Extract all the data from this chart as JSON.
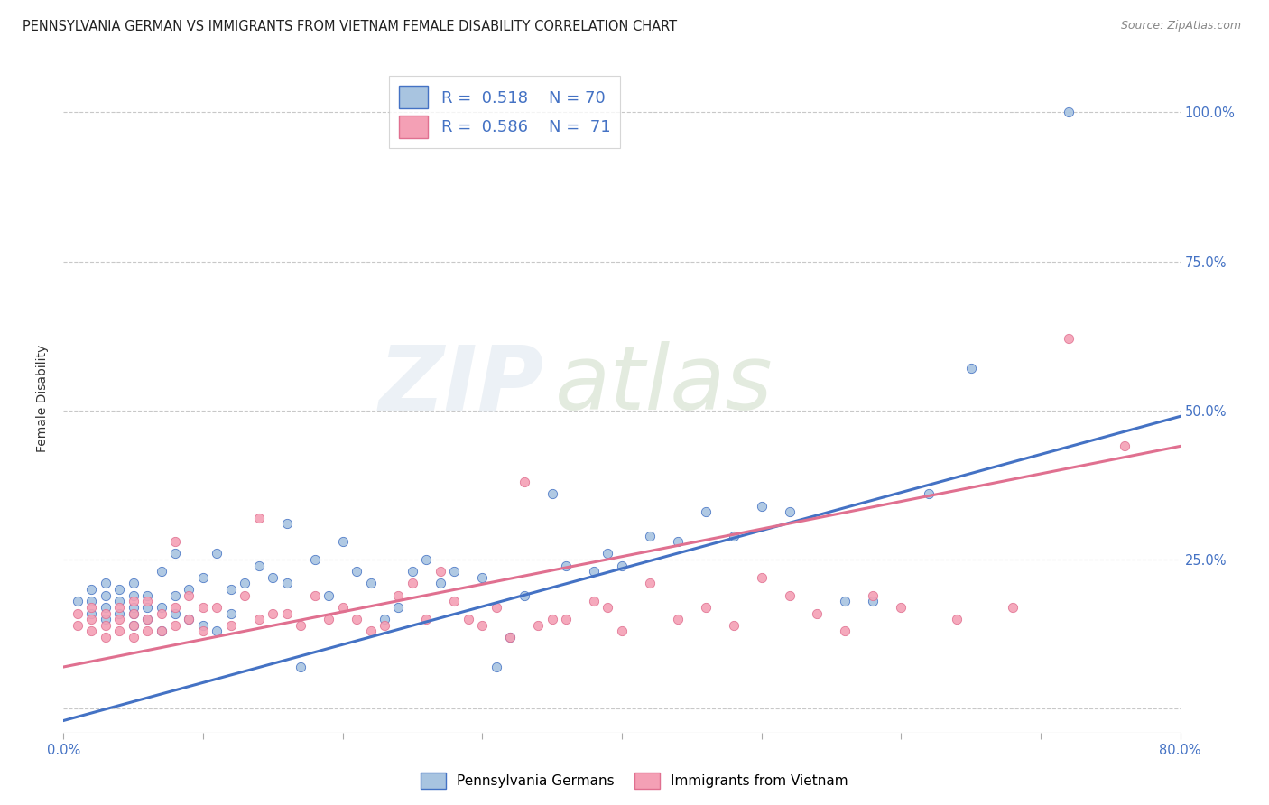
{
  "title": "PENNSYLVANIA GERMAN VS IMMIGRANTS FROM VIETNAM FEMALE DISABILITY CORRELATION CHART",
  "source": "Source: ZipAtlas.com",
  "ylabel": "Female Disability",
  "xlim": [
    0.0,
    0.8
  ],
  "ylim": [
    -0.04,
    1.08
  ],
  "yticks": [
    0.0,
    0.25,
    0.5,
    0.75,
    1.0
  ],
  "ytick_labels": [
    "",
    "25.0%",
    "50.0%",
    "75.0%",
    "100.0%"
  ],
  "xticks": [
    0.0,
    0.1,
    0.2,
    0.3,
    0.4,
    0.5,
    0.6,
    0.7,
    0.8
  ],
  "xtick_labels": [
    "0.0%",
    "",
    "",
    "",
    "",
    "",
    "",
    "",
    "80.0%"
  ],
  "blue_R": 0.518,
  "blue_N": 70,
  "pink_R": 0.586,
  "pink_N": 71,
  "blue_color": "#a8c4e0",
  "pink_color": "#f4a0b5",
  "line_blue": "#4472c4",
  "line_pink": "#e07090",
  "blue_scatter_x": [
    0.01,
    0.02,
    0.02,
    0.02,
    0.03,
    0.03,
    0.03,
    0.03,
    0.04,
    0.04,
    0.04,
    0.05,
    0.05,
    0.05,
    0.05,
    0.05,
    0.06,
    0.06,
    0.06,
    0.07,
    0.07,
    0.07,
    0.08,
    0.08,
    0.08,
    0.09,
    0.09,
    0.1,
    0.1,
    0.11,
    0.11,
    0.12,
    0.12,
    0.13,
    0.14,
    0.15,
    0.16,
    0.16,
    0.17,
    0.18,
    0.19,
    0.2,
    0.21,
    0.22,
    0.23,
    0.24,
    0.25,
    0.26,
    0.27,
    0.28,
    0.3,
    0.31,
    0.32,
    0.33,
    0.35,
    0.36,
    0.38,
    0.39,
    0.4,
    0.42,
    0.44,
    0.46,
    0.48,
    0.5,
    0.52,
    0.56,
    0.58,
    0.62,
    0.65,
    0.72
  ],
  "blue_scatter_y": [
    0.18,
    0.16,
    0.18,
    0.2,
    0.15,
    0.17,
    0.19,
    0.21,
    0.16,
    0.18,
    0.2,
    0.14,
    0.16,
    0.17,
    0.19,
    0.21,
    0.15,
    0.17,
    0.19,
    0.13,
    0.17,
    0.23,
    0.16,
    0.19,
    0.26,
    0.15,
    0.2,
    0.14,
    0.22,
    0.13,
    0.26,
    0.16,
    0.2,
    0.21,
    0.24,
    0.22,
    0.31,
    0.21,
    0.07,
    0.25,
    0.19,
    0.28,
    0.23,
    0.21,
    0.15,
    0.17,
    0.23,
    0.25,
    0.21,
    0.23,
    0.22,
    0.07,
    0.12,
    0.19,
    0.36,
    0.24,
    0.23,
    0.26,
    0.24,
    0.29,
    0.28,
    0.33,
    0.29,
    0.34,
    0.33,
    0.18,
    0.18,
    0.36,
    0.57,
    1.0
  ],
  "pink_scatter_x": [
    0.01,
    0.01,
    0.02,
    0.02,
    0.02,
    0.03,
    0.03,
    0.03,
    0.04,
    0.04,
    0.04,
    0.05,
    0.05,
    0.05,
    0.05,
    0.06,
    0.06,
    0.06,
    0.07,
    0.07,
    0.08,
    0.08,
    0.08,
    0.09,
    0.09,
    0.1,
    0.1,
    0.11,
    0.12,
    0.13,
    0.14,
    0.14,
    0.15,
    0.16,
    0.17,
    0.18,
    0.19,
    0.2,
    0.21,
    0.22,
    0.23,
    0.24,
    0.25,
    0.26,
    0.27,
    0.28,
    0.29,
    0.3,
    0.31,
    0.32,
    0.33,
    0.34,
    0.35,
    0.36,
    0.38,
    0.39,
    0.4,
    0.42,
    0.44,
    0.46,
    0.48,
    0.5,
    0.52,
    0.54,
    0.56,
    0.58,
    0.6,
    0.64,
    0.68,
    0.72,
    0.76
  ],
  "pink_scatter_y": [
    0.14,
    0.16,
    0.13,
    0.15,
    0.17,
    0.12,
    0.14,
    0.16,
    0.13,
    0.15,
    0.17,
    0.12,
    0.14,
    0.16,
    0.18,
    0.13,
    0.15,
    0.18,
    0.13,
    0.16,
    0.28,
    0.14,
    0.17,
    0.15,
    0.19,
    0.13,
    0.17,
    0.17,
    0.14,
    0.19,
    0.32,
    0.15,
    0.16,
    0.16,
    0.14,
    0.19,
    0.15,
    0.17,
    0.15,
    0.13,
    0.14,
    0.19,
    0.21,
    0.15,
    0.23,
    0.18,
    0.15,
    0.14,
    0.17,
    0.12,
    0.38,
    0.14,
    0.15,
    0.15,
    0.18,
    0.17,
    0.13,
    0.21,
    0.15,
    0.17,
    0.14,
    0.22,
    0.19,
    0.16,
    0.13,
    0.19,
    0.17,
    0.15,
    0.17,
    0.62,
    0.44
  ],
  "blue_line_x": [
    0.0,
    0.8
  ],
  "blue_line_y": [
    -0.02,
    0.49
  ],
  "pink_line_x": [
    0.0,
    0.8
  ],
  "pink_line_y": [
    0.07,
    0.44
  ],
  "watermark_zip": "ZIP",
  "watermark_atlas": "atlas",
  "background_color": "#ffffff",
  "grid_color": "#c8c8c8",
  "title_fontsize": 10.5,
  "scatter_size": 55,
  "legend_fontsize": 13
}
